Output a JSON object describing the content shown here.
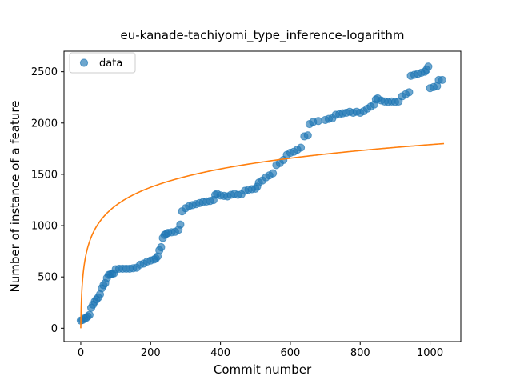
{
  "chart_data": {
    "type": "scatter",
    "title": "eu-kanade-tachiyomi_type_inference-logarithm",
    "xlabel": "Commit number",
    "ylabel": "Number of instance of a feature",
    "xlim": [
      -48,
      1088
    ],
    "ylim": [
      -130,
      2700
    ],
    "xticks": [
      0,
      200,
      400,
      600,
      800,
      1000
    ],
    "yticks": [
      0,
      500,
      1000,
      1500,
      2000,
      2500
    ],
    "legend": {
      "placement": "top-left",
      "entries": [
        "data"
      ]
    },
    "grid": false,
    "series": [
      {
        "name": "data",
        "kind": "scatter",
        "color": "#1f77b4",
        "points": [
          [
            0,
            75
          ],
          [
            5,
            80
          ],
          [
            10,
            95
          ],
          [
            15,
            100
          ],
          [
            20,
            115
          ],
          [
            25,
            130
          ],
          [
            30,
            200
          ],
          [
            35,
            230
          ],
          [
            40,
            260
          ],
          [
            45,
            280
          ],
          [
            50,
            300
          ],
          [
            55,
            330
          ],
          [
            60,
            390
          ],
          [
            65,
            420
          ],
          [
            70,
            440
          ],
          [
            75,
            490
          ],
          [
            80,
            520
          ],
          [
            85,
            525
          ],
          [
            90,
            530
          ],
          [
            95,
            535
          ],
          [
            100,
            575
          ],
          [
            110,
            580
          ],
          [
            120,
            580
          ],
          [
            130,
            580
          ],
          [
            140,
            580
          ],
          [
            150,
            585
          ],
          [
            160,
            590
          ],
          [
            170,
            620
          ],
          [
            180,
            630
          ],
          [
            190,
            650
          ],
          [
            200,
            660
          ],
          [
            210,
            670
          ],
          [
            215,
            680
          ],
          [
            220,
            700
          ],
          [
            225,
            760
          ],
          [
            230,
            790
          ],
          [
            235,
            880
          ],
          [
            240,
            910
          ],
          [
            245,
            920
          ],
          [
            250,
            930
          ],
          [
            260,
            935
          ],
          [
            270,
            940
          ],
          [
            280,
            960
          ],
          [
            285,
            1010
          ],
          [
            290,
            1140
          ],
          [
            300,
            1170
          ],
          [
            310,
            1190
          ],
          [
            320,
            1200
          ],
          [
            330,
            1210
          ],
          [
            340,
            1220
          ],
          [
            350,
            1230
          ],
          [
            360,
            1235
          ],
          [
            370,
            1240
          ],
          [
            380,
            1250
          ],
          [
            385,
            1300
          ],
          [
            390,
            1310
          ],
          [
            400,
            1295
          ],
          [
            410,
            1290
          ],
          [
            420,
            1285
          ],
          [
            430,
            1300
          ],
          [
            440,
            1310
          ],
          [
            450,
            1300
          ],
          [
            460,
            1305
          ],
          [
            470,
            1340
          ],
          [
            480,
            1350
          ],
          [
            490,
            1355
          ],
          [
            500,
            1360
          ],
          [
            505,
            1380
          ],
          [
            510,
            1420
          ],
          [
            520,
            1440
          ],
          [
            530,
            1470
          ],
          [
            540,
            1490
          ],
          [
            550,
            1510
          ],
          [
            560,
            1590
          ],
          [
            570,
            1610
          ],
          [
            580,
            1640
          ],
          [
            590,
            1690
          ],
          [
            600,
            1710
          ],
          [
            610,
            1720
          ],
          [
            620,
            1740
          ],
          [
            630,
            1760
          ],
          [
            640,
            1870
          ],
          [
            650,
            1880
          ],
          [
            655,
            1990
          ],
          [
            665,
            2010
          ],
          [
            680,
            2020
          ],
          [
            700,
            2030
          ],
          [
            710,
            2040
          ],
          [
            720,
            2045
          ],
          [
            730,
            2080
          ],
          [
            740,
            2085
          ],
          [
            750,
            2095
          ],
          [
            760,
            2100
          ],
          [
            770,
            2110
          ],
          [
            780,
            2100
          ],
          [
            790,
            2110
          ],
          [
            800,
            2100
          ],
          [
            810,
            2115
          ],
          [
            820,
            2140
          ],
          [
            830,
            2160
          ],
          [
            840,
            2180
          ],
          [
            845,
            2230
          ],
          [
            850,
            2240
          ],
          [
            860,
            2220
          ],
          [
            870,
            2210
          ],
          [
            880,
            2205
          ],
          [
            890,
            2210
          ],
          [
            900,
            2205
          ],
          [
            910,
            2210
          ],
          [
            920,
            2260
          ],
          [
            930,
            2280
          ],
          [
            940,
            2300
          ],
          [
            945,
            2460
          ],
          [
            955,
            2470
          ],
          [
            965,
            2480
          ],
          [
            975,
            2490
          ],
          [
            985,
            2500
          ],
          [
            990,
            2520
          ],
          [
            995,
            2550
          ],
          [
            1000,
            2340
          ],
          [
            1010,
            2350
          ],
          [
            1020,
            2360
          ],
          [
            1025,
            2420
          ],
          [
            1035,
            2420
          ]
        ]
      },
      {
        "name": "",
        "kind": "line",
        "color": "#ff7f0e",
        "formula": "y = a*ln(x+1)",
        "a": 259.0,
        "x_range": [
          0,
          1040
        ]
      }
    ]
  }
}
